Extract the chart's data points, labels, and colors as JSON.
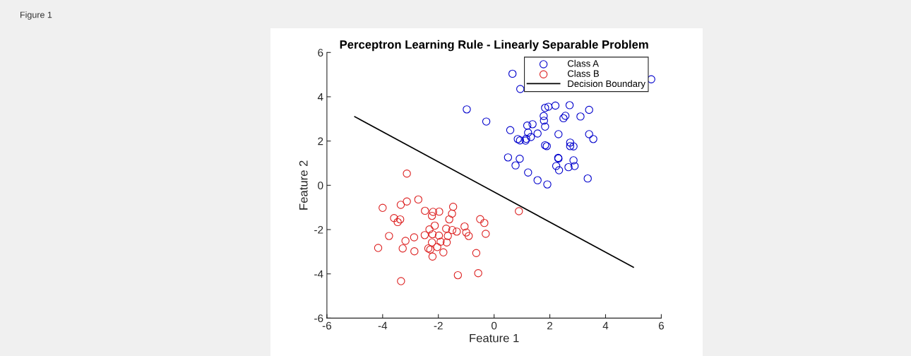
{
  "chart_data": {
    "type": "scatter",
    "title": "Perceptron Learning Rule - Linearly Separable Problem",
    "xlabel": "Feature 1",
    "ylabel": "Feature 2",
    "annotations": [
      "Figure 1"
    ],
    "xlim": [
      -6,
      6
    ],
    "ylim": [
      -6,
      6
    ],
    "xticks": [
      -6,
      -4,
      -2,
      0,
      2,
      4,
      6
    ],
    "yticks": [
      -6,
      -4,
      -2,
      0,
      2,
      4,
      6
    ],
    "grid": false,
    "legend": "top right",
    "marker": "circle",
    "series": [
      {
        "name": "Class A",
        "color": "#0000cc",
        "x": [
          0.66,
          0.94,
          -0.98,
          -0.28,
          0.58,
          0.85,
          0.93,
          1.13,
          1.15,
          1.19,
          1.38,
          1.22,
          1.32,
          1.56,
          1.83,
          1.79,
          1.78,
          1.83,
          1.95,
          2.2,
          2.71,
          3.41,
          3.1,
          2.49,
          2.56,
          2.31,
          1.83,
          1.89,
          2.73,
          2.73,
          2.85,
          3.41,
          3.56,
          0.5,
          0.92,
          0.77,
          1.22,
          2.3,
          2.31,
          2.85,
          2.23,
          2.33,
          2.67,
          2.89,
          1.56,
          1.91,
          3.36,
          5.64
        ],
        "values": [
          5.04,
          4.35,
          3.43,
          2.88,
          2.49,
          2.09,
          2.03,
          2.02,
          2.1,
          2.7,
          2.76,
          2.38,
          2.18,
          2.34,
          2.65,
          2.92,
          3.13,
          3.5,
          3.55,
          3.6,
          3.62,
          3.41,
          3.11,
          3.03,
          3.14,
          2.31,
          1.81,
          1.77,
          1.93,
          1.77,
          1.76,
          2.31,
          2.09,
          1.26,
          1.2,
          0.9,
          0.58,
          1.24,
          1.21,
          1.13,
          0.87,
          0.68,
          0.82,
          0.87,
          0.23,
          0.04,
          0.31,
          4.79
        ]
      },
      {
        "name": "Class B",
        "color": "#dd2222",
        "x": [
          -3.13,
          -4.0,
          -3.35,
          -3.13,
          -2.72,
          -3.59,
          -3.37,
          -3.46,
          -3.77,
          -4.16,
          -3.18,
          -3.28,
          -2.87,
          -2.86,
          -3.34,
          -2.48,
          -2.19,
          -2.23,
          -1.97,
          -2.13,
          -2.32,
          -2.49,
          -2.21,
          -1.98,
          -2.23,
          -1.92,
          -2.36,
          -2.29,
          -2.04,
          -2.21,
          -1.82,
          -1.7,
          -1.66,
          -1.72,
          -1.61,
          -1.51,
          -1.47,
          -1.5,
          -1.34,
          -1.06,
          -1.0,
          -0.91,
          -0.5,
          -0.35,
          -0.3,
          -0.64,
          -0.57,
          -1.3,
          0.89
        ],
        "values": [
          0.53,
          -1.02,
          -0.88,
          -0.73,
          -0.64,
          -1.48,
          -1.54,
          -1.66,
          -2.29,
          -2.83,
          -2.51,
          -2.85,
          -2.35,
          -2.98,
          -4.33,
          -1.15,
          -1.2,
          -1.38,
          -1.19,
          -1.82,
          -1.99,
          -2.25,
          -2.21,
          -2.27,
          -2.58,
          -2.55,
          -2.85,
          -2.9,
          -2.79,
          -3.22,
          -3.03,
          -2.58,
          -2.29,
          -1.96,
          -1.54,
          -1.28,
          -0.97,
          -2.02,
          -2.09,
          -1.86,
          -2.13,
          -2.29,
          -1.53,
          -1.7,
          -2.19,
          -3.06,
          -3.97,
          -4.06,
          -1.17
        ]
      },
      {
        "name": "Decision Boundary",
        "color": "#000000",
        "type": "line",
        "marker": "none",
        "x": [
          -5.0,
          5.0
        ],
        "values": [
          3.1,
          -3.7
        ]
      }
    ]
  }
}
